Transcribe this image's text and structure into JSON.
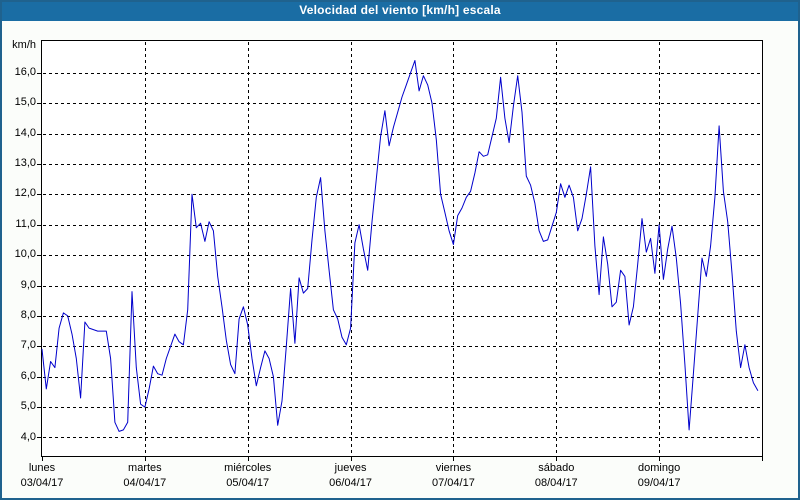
{
  "window": {
    "title": "Velocidad del viento [km/h] escala"
  },
  "colors": {
    "titlebar": "#1a6da4",
    "window_border": "#1f628e",
    "window_background": "#fbfdfa",
    "plot_background": "#ffffff",
    "grid": "#000000",
    "line": "#0000cc",
    "title_text": "#ffffff",
    "axis_text": "#000000"
  },
  "chart_data": {
    "type": "line",
    "title": "Velocidad del viento [km/h] escala",
    "unit_label": "km/h",
    "ylabel": "km/h",
    "grid": "dashed",
    "legend": "none",
    "ylim": [
      3.5,
      17
    ],
    "y_ticks": [
      16,
      15,
      14,
      13,
      12,
      11,
      10,
      9,
      8,
      7,
      6,
      5,
      4
    ],
    "y_tick_labels": [
      "16,0",
      "15,0",
      "14,0",
      "13,0",
      "12,0",
      "11,0",
      "10,0",
      "9,0",
      "8,0",
      "7,0",
      "6,0",
      "5,0",
      "4,0"
    ],
    "x_day_labels": [
      {
        "name": "lunes",
        "date": "03/04/17"
      },
      {
        "name": "martes",
        "date": "04/04/17"
      },
      {
        "name": "miércoles",
        "date": "05/04/17"
      },
      {
        "name": "jueves",
        "date": "06/04/17"
      },
      {
        "name": "viernes",
        "date": "07/04/17"
      },
      {
        "name": "sábado",
        "date": "08/04/17"
      },
      {
        "name": "domingo",
        "date": "09/04/17"
      }
    ],
    "sampling": "hourly, starting lunes 03/04/17 00:00",
    "series": [
      {
        "name": "Velocidad del viento [km/h]",
        "values_kmh": [
          6.9,
          5.6,
          6.5,
          6.3,
          7.6,
          8.1,
          8.0,
          7.4,
          6.6,
          5.3,
          7.8,
          7.6,
          7.55,
          7.5,
          7.5,
          7.5,
          6.6,
          4.5,
          4.2,
          4.25,
          4.5,
          8.8,
          6.3,
          5.1,
          5.0,
          5.6,
          6.35,
          6.1,
          6.05,
          6.6,
          7.0,
          7.4,
          7.15,
          7.05,
          8.2,
          12.0,
          10.9,
          11.05,
          10.45,
          11.1,
          10.8,
          9.3,
          8.3,
          7.2,
          6.4,
          6.1,
          7.9,
          8.3,
          7.7,
          6.6,
          5.7,
          6.3,
          6.85,
          6.6,
          6.0,
          4.4,
          5.2,
          7.0,
          8.9,
          7.1,
          9.25,
          8.75,
          8.9,
          10.5,
          11.9,
          12.55,
          10.8,
          9.5,
          8.2,
          7.9,
          7.3,
          7.05,
          7.6,
          10.4,
          11.0,
          10.2,
          9.5,
          11.1,
          12.5,
          13.9,
          14.75,
          13.6,
          14.2,
          14.7,
          15.2,
          15.6,
          16.0,
          16.4,
          15.4,
          15.9,
          15.6,
          15.0,
          13.8,
          12.0,
          11.4,
          10.8,
          10.35,
          11.3,
          11.55,
          11.9,
          12.1,
          12.7,
          13.4,
          13.25,
          13.3,
          13.9,
          14.5,
          15.85,
          14.5,
          13.7,
          14.9,
          15.9,
          14.7,
          12.6,
          12.3,
          11.7,
          10.8,
          10.45,
          10.5,
          10.95,
          11.4,
          12.35,
          11.9,
          12.3,
          11.9,
          10.8,
          11.2,
          12.0,
          12.9,
          10.3,
          8.7,
          10.6,
          9.7,
          8.3,
          8.45,
          9.5,
          9.3,
          7.7,
          8.3,
          9.7,
          11.2,
          10.1,
          10.55,
          9.4,
          11.0,
          9.2,
          10.2,
          10.95,
          9.9,
          8.4,
          6.4,
          4.25,
          6.1,
          8.0,
          9.9,
          9.3,
          10.3,
          11.9,
          14.25,
          12.1,
          11.1,
          9.4,
          7.5,
          6.3,
          7.05,
          6.3,
          5.8,
          5.55
        ]
      }
    ]
  }
}
